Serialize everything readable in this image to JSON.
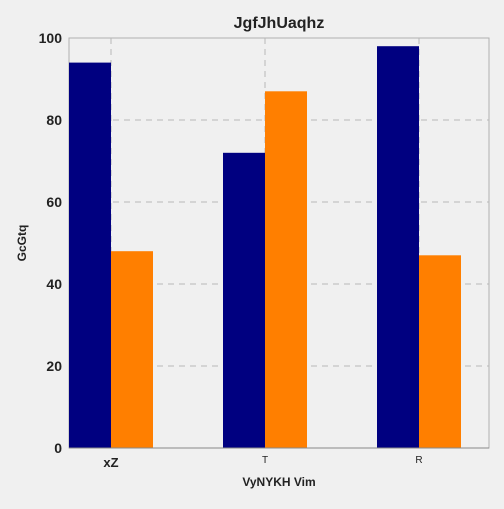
{
  "chart_data": {
    "type": "bar",
    "title": "JgfJhUaqhz",
    "xlabel": "VyNYKH Vim",
    "ylabel": "GcGtq",
    "categories": [
      "xZ",
      "T",
      "R"
    ],
    "series": [
      {
        "values": [
          94,
          72,
          98
        ],
        "color": "#000080"
      },
      {
        "values": [
          48,
          87,
          47
        ],
        "color": "#ff7f00"
      }
    ],
    "ylim": [
      0,
      100
    ],
    "yticks": [
      0,
      20,
      40,
      60,
      80,
      100
    ],
    "grid": true,
    "background": "#f0f0f0"
  }
}
